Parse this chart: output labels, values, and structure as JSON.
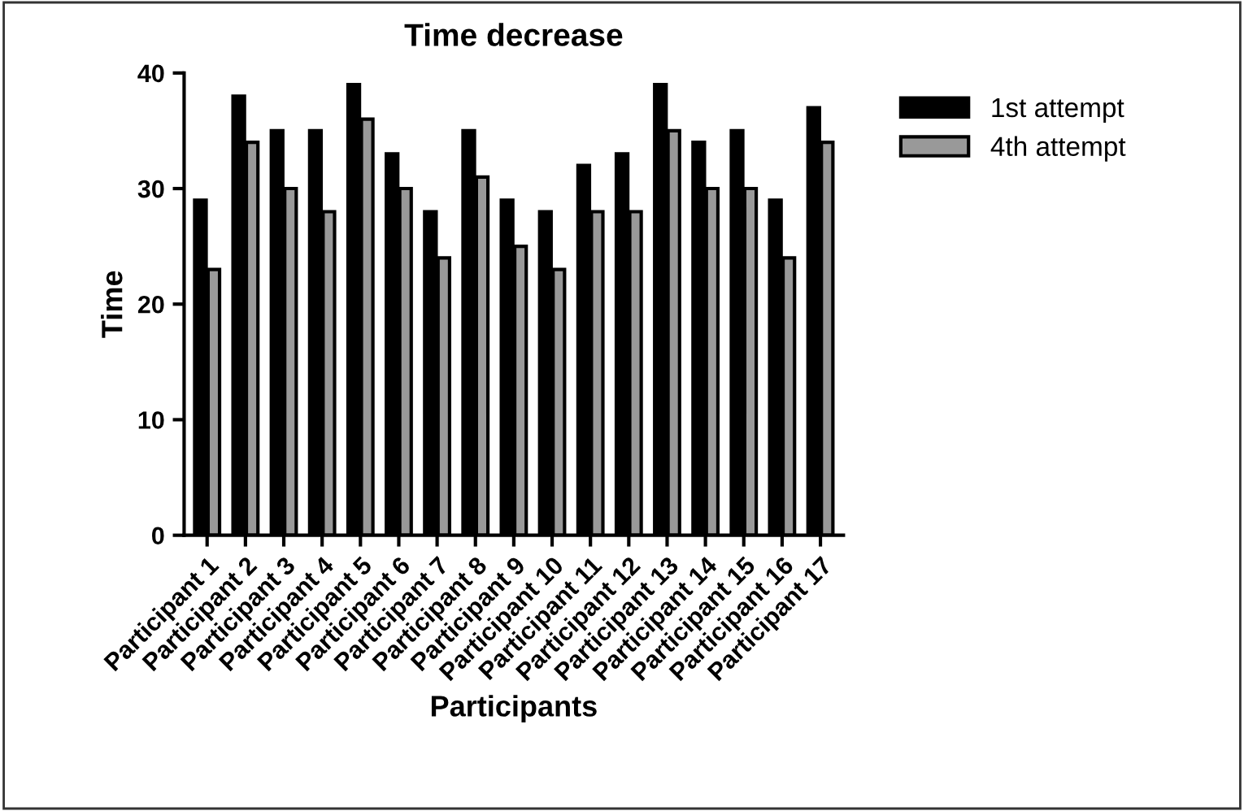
{
  "chart_data": {
    "type": "bar",
    "title": "Time decrease",
    "xlabel": "Participants",
    "ylabel": "Time",
    "categories": [
      "Participant 1",
      "Participant 2",
      "Participant 3",
      "Participant 4",
      "Participant 5",
      "Participant 6",
      "Participant 7",
      "Participant 8",
      "Participant 9",
      "Participant 10",
      "Participant 11",
      "Participant 12",
      "Participant 13",
      "Participant 14",
      "Participant 15",
      "Participant 16",
      "Participant 17"
    ],
    "series": [
      {
        "name": "1st attempt",
        "color": "#000000",
        "values": [
          29,
          38,
          35,
          35,
          39,
          33,
          28,
          35,
          29,
          28,
          32,
          33,
          39,
          34,
          35,
          29,
          37
        ]
      },
      {
        "name": "4th attempt",
        "color": "#999999",
        "values": [
          23,
          34,
          30,
          28,
          36,
          30,
          24,
          31,
          25,
          23,
          28,
          28,
          35,
          30,
          30,
          24,
          34
        ]
      }
    ],
    "ylim": [
      0,
      40
    ],
    "yticks": [
      0,
      10,
      20,
      30,
      40
    ],
    "grid": false,
    "legend": "top right"
  }
}
